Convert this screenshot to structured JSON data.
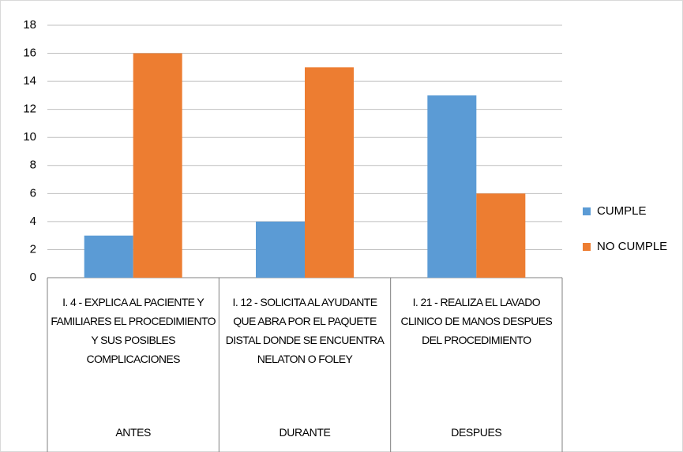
{
  "chart_data": {
    "type": "bar",
    "categories": [
      "I. 4 - EXPLICA AL PACIENTE Y FAMILIARES EL PROCEDIMIENTO Y SUS POSIBLES COMPLICACIONES",
      "I. 12 - SOLICITA AL AYUDANTE QUE ABRA POR EL PAQUETE DISTAL DONDE SE ENCUENTRA NELATON O FOLEY",
      "I. 21 - REALIZA EL LAVADO CLINICO DE MANOS DESPUES DEL PROCEDIMIENTO"
    ],
    "groups": [
      "ANTES",
      "DURANTE",
      "DESPUES"
    ],
    "series": [
      {
        "name": "CUMPLE",
        "color": "#5b9bd5",
        "values": [
          3,
          4,
          13
        ]
      },
      {
        "name": "NO CUMPLE",
        "color": "#ed7d31",
        "values": [
          16,
          15,
          6
        ]
      }
    ],
    "ylim": [
      0,
      18
    ],
    "yticks": [
      0,
      2,
      4,
      6,
      8,
      10,
      12,
      14,
      16,
      18
    ],
    "grid": true,
    "legend": "right"
  }
}
